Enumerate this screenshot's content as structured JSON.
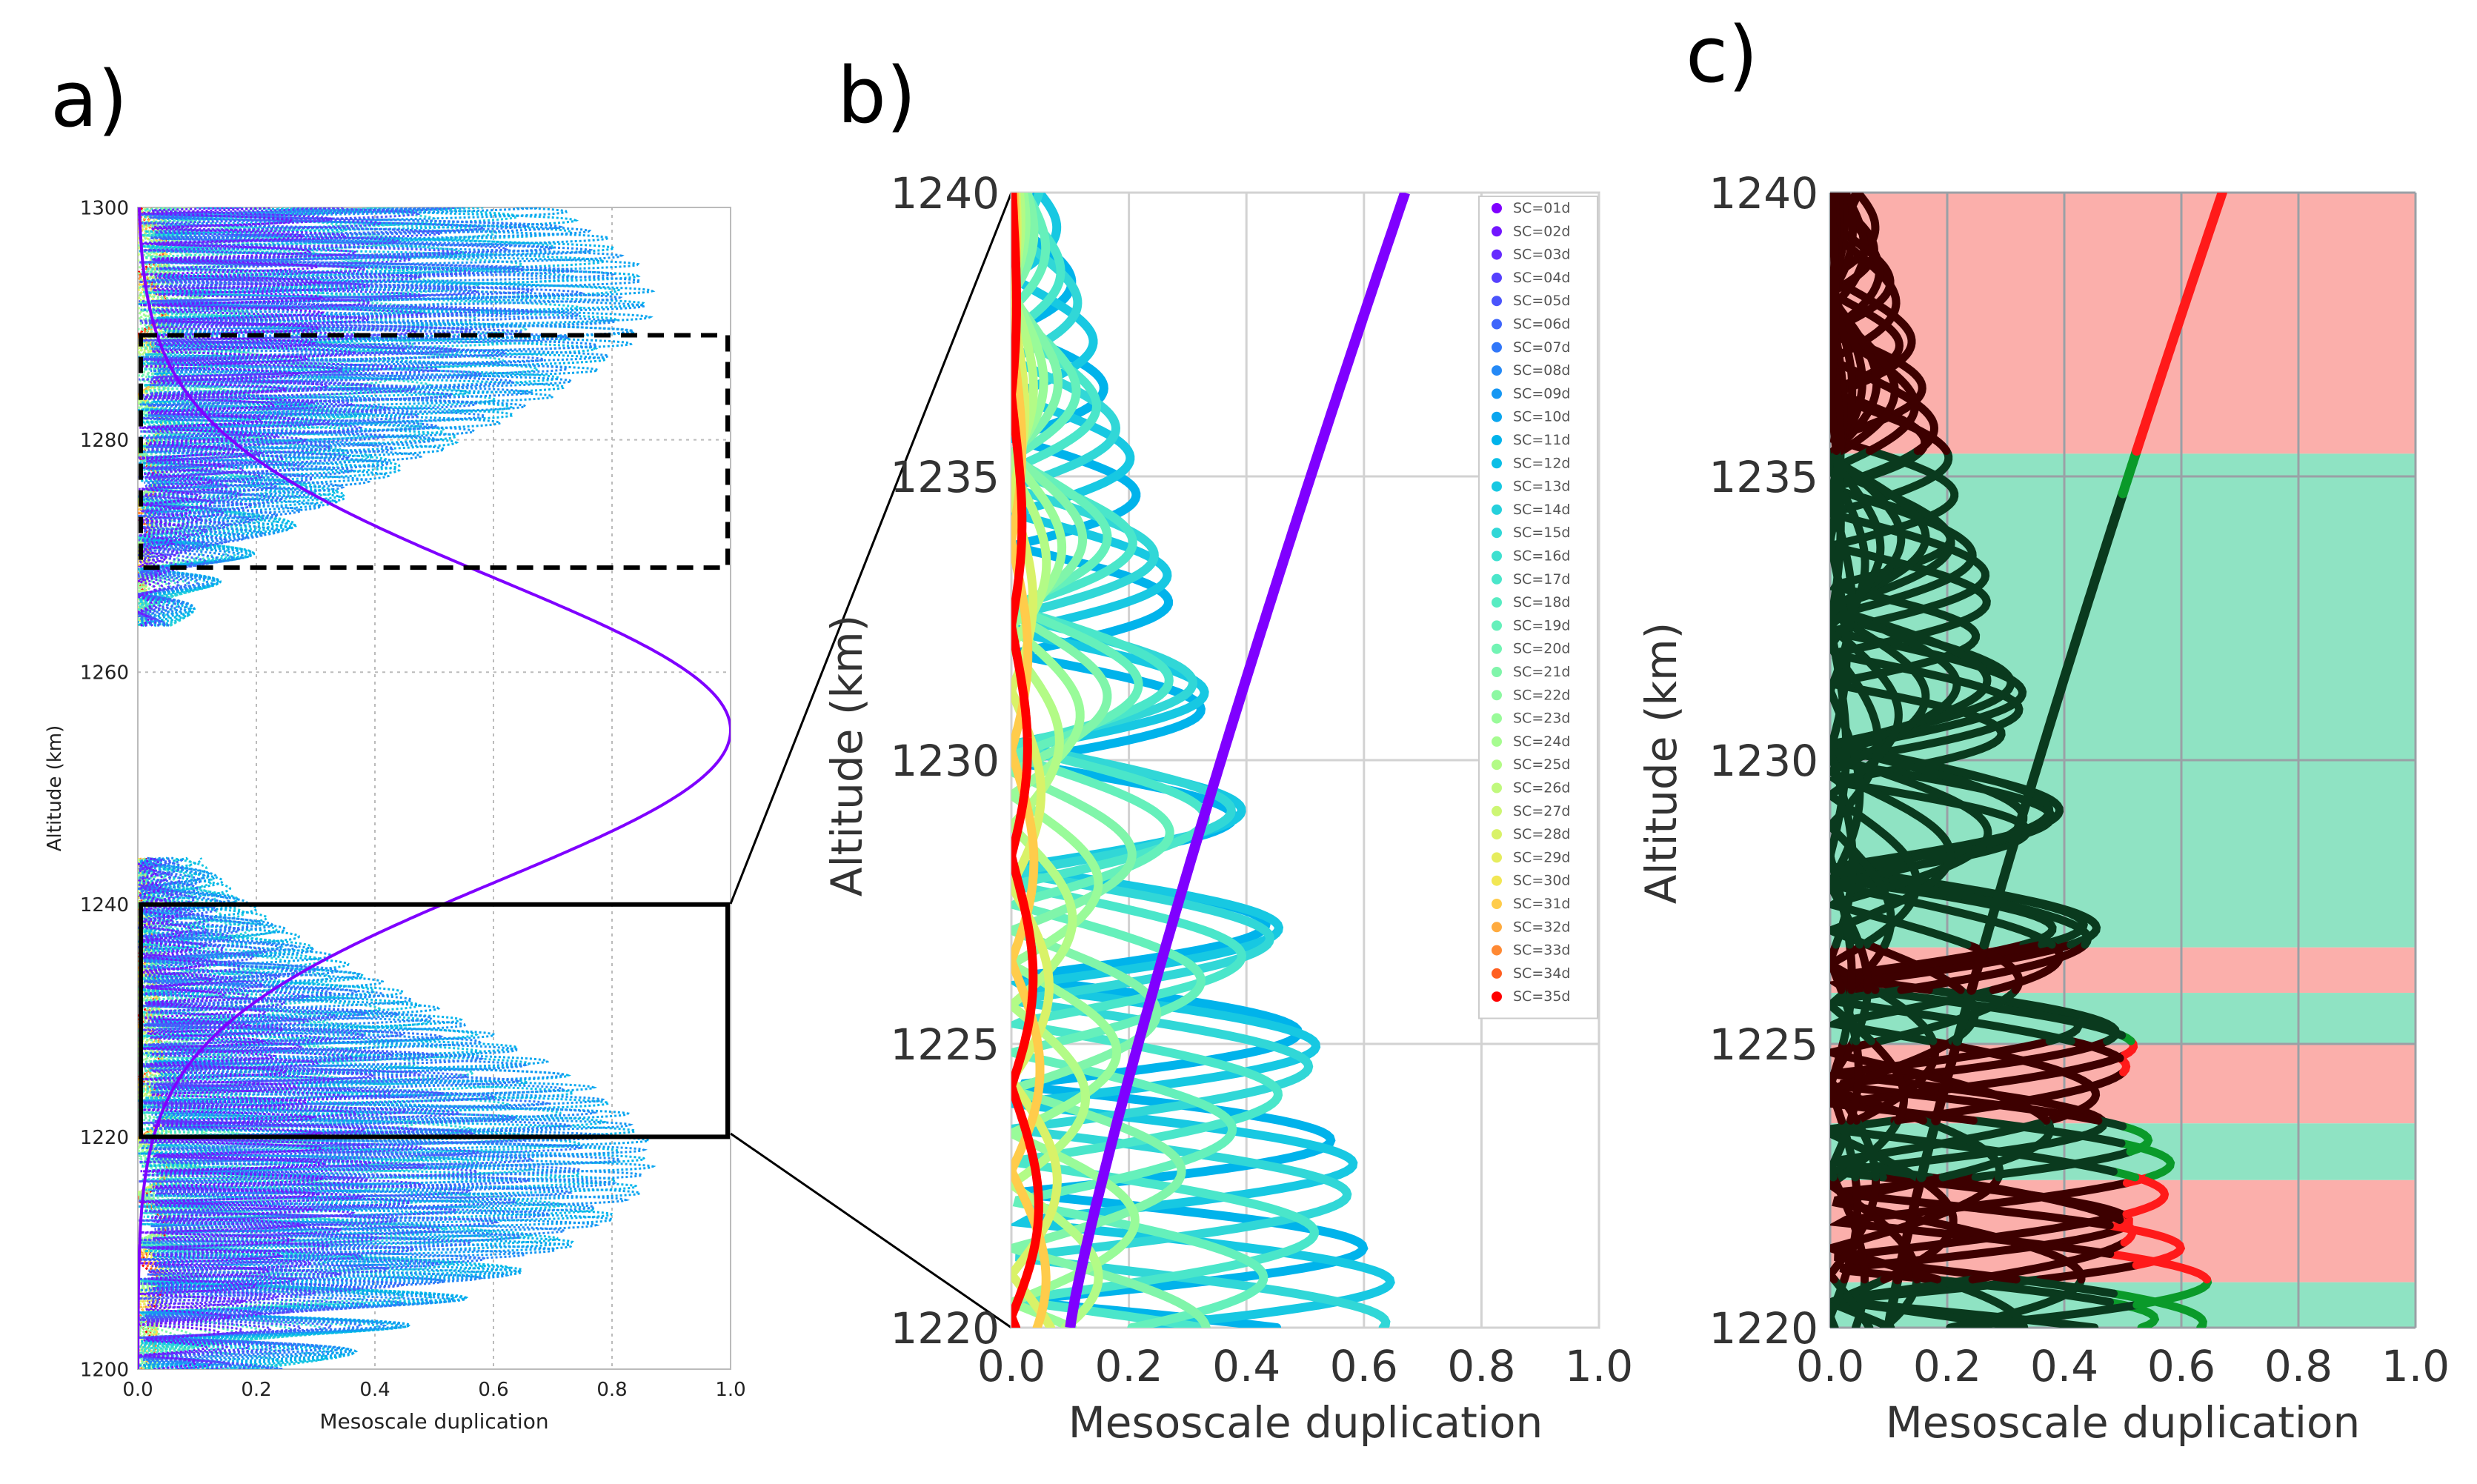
{
  "chart_data": [
    {
      "panel": "a",
      "panel_label": "a)",
      "type": "line",
      "xlabel": "Mesoscale duplication",
      "ylabel": "Altitude (km)",
      "xlim": [
        0.0,
        1.0
      ],
      "ylim": [
        1200,
        1300
      ],
      "xticks": [
        "0.0",
        "0.2",
        "0.4",
        "0.6",
        "0.8",
        "1.0"
      ],
      "yticks": [
        "1200",
        "1220",
        "1240",
        "1260",
        "1280",
        "1300"
      ],
      "grid": true,
      "gaussian": {
        "name": "SC=01d",
        "peak_altitude": 1255,
        "peak_value": 1.0,
        "sigma_km": 13
      },
      "zoom_boxes": [
        {
          "style": "solid",
          "x": [
            0.0,
            1.0
          ],
          "y": [
            1220,
            1240
          ]
        },
        {
          "style": "dashed",
          "x": [
            0.0,
            1.0
          ],
          "y": [
            1269,
            1289
          ]
        }
      ]
    },
    {
      "panel": "b",
      "panel_label": "b)",
      "type": "line",
      "xlabel": "Mesoscale duplication",
      "ylabel": "Altitude (km)",
      "xlim": [
        0.0,
        1.0
      ],
      "ylim": [
        1220,
        1240
      ],
      "xticks": [
        "0.0",
        "0.2",
        "0.4",
        "0.6",
        "0.8",
        "1.0"
      ],
      "yticks": [
        "1220",
        "1225",
        "1230",
        "1235",
        "1240"
      ],
      "grid": true,
      "legend": {
        "placement": "top-right",
        "entries": [
          "SC=01d",
          "SC=02d",
          "SC=03d",
          "SC=04d",
          "SC=05d",
          "SC=06d",
          "SC=07d",
          "SC=08d",
          "SC=09d",
          "SC=10d",
          "SC=11d",
          "SC=12d",
          "SC=13d",
          "SC=14d",
          "SC=15d",
          "SC=16d",
          "SC=17d",
          "SC=18d",
          "SC=19d",
          "SC=20d",
          "SC=21d",
          "SC=22d",
          "SC=23d",
          "SC=24d",
          "SC=25d",
          "SC=26d",
          "SC=27d",
          "SC=28d",
          "SC=29d",
          "SC=30d",
          "SC=31d",
          "SC=32d",
          "SC=33d",
          "SC=34d",
          "SC=35d"
        ],
        "colors": [
          "#7f00ff",
          "#7216ff",
          "#662bff",
          "#5640fe",
          "#4a54fc",
          "#3e65fb",
          "#3077f9",
          "#2489f6",
          "#1697f3",
          "#0aa6ef",
          "#00b3eb",
          "#0bbee6",
          "#17c8e2",
          "#25d0dc",
          "#31d7d7",
          "#3ee0d0",
          "#4ae6ca",
          "#58ecc2",
          "#65f0bb",
          "#72f4b4",
          "#80f5aa",
          "#8df8a2",
          "#99fb99",
          "#a6fc90",
          "#b3fb86",
          "#c0f97d",
          "#cdf673",
          "#d9f268",
          "#e6ed5e",
          "#f2e754",
          "#ffcc4b",
          "#ffab3f",
          "#ff8933",
          "#ff5f20",
          "#ff0000"
        ]
      },
      "series": [
        {
          "name": "SC=01d",
          "x_at_1220": 0.1,
          "x_at_1240": 0.67
        }
      ]
    },
    {
      "panel": "c",
      "panel_label": "c)",
      "type": "line",
      "xlabel": "Mesoscale duplication",
      "ylabel": "Altitude (km)",
      "xlim": [
        0.0,
        1.0
      ],
      "ylim": [
        1220,
        1240
      ],
      "xticks": [
        "0.0",
        "0.2",
        "0.4",
        "0.6",
        "0.8",
        "1.0"
      ],
      "yticks": [
        "1220",
        "1225",
        "1230",
        "1235",
        "1240"
      ],
      "grid": true,
      "threshold": 0.5,
      "bands": [
        {
          "y": [
            1235.4,
            1240.0
          ],
          "state": "above"
        },
        {
          "y": [
            1226.7,
            1235.4
          ],
          "state": "below"
        },
        {
          "y": [
            1225.9,
            1226.7
          ],
          "state": "above"
        },
        {
          "y": [
            1225.0,
            1225.9
          ],
          "state": "below"
        },
        {
          "y": [
            1223.6,
            1225.0
          ],
          "state": "above"
        },
        {
          "y": [
            1222.6,
            1223.6
          ],
          "state": "below"
        },
        {
          "y": [
            1220.8,
            1222.6
          ],
          "state": "above"
        },
        {
          "y": [
            1220.0,
            1220.8
          ],
          "state": "below"
        }
      ],
      "band_colors": {
        "above": "#fbafab",
        "below": "#8fe3c3"
      }
    }
  ]
}
